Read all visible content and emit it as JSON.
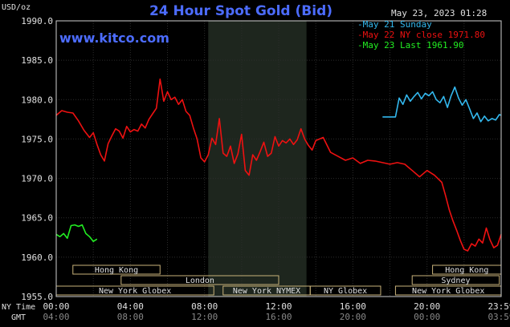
{
  "chart_data": {
    "type": "line",
    "title": "24 Hour Spot Gold (Bid)",
    "watermark": "www.kitco.com",
    "timestamp": "May 23, 2023 01:28",
    "ylabel": "USD/oz",
    "ylim": [
      1955,
      1990
    ],
    "y_ticks": [
      "1990.0",
      "1985.0",
      "1980.0",
      "1975.0",
      "1970.0",
      "1965.0",
      "1960.0",
      "1955.0"
    ],
    "xlim": [
      0,
      24
    ],
    "x_row_labels": {
      "ny": "NY Time",
      "gmt": "GMT"
    },
    "x_ticks_ny": [
      "00:00",
      "04:00",
      "08:00",
      "12:00",
      "16:00",
      "20:00",
      "23:59"
    ],
    "x_ticks_gmt": [
      "04:00",
      "08:00",
      "12:00",
      "16:00",
      "20:00",
      "00:00",
      "03:59"
    ],
    "grid": true,
    "legend": "top-right",
    "shaded_period": [
      8.2,
      13.5
    ],
    "sessions": [
      {
        "label": "Hong Kong",
        "start": 0.9,
        "end": 5.6,
        "row": 0
      },
      {
        "label": "London",
        "start": 3.5,
        "end": 12.0,
        "row": 1
      },
      {
        "label": "New York Globex",
        "start": 0,
        "end": 8.5,
        "row": 2
      },
      {
        "label": "New York NYMEX",
        "start": 9.0,
        "end": 13.7,
        "row": 2
      },
      {
        "label": "NY Globex",
        "start": 13.7,
        "end": 17.5,
        "row": 2
      },
      {
        "label": "Hong Kong",
        "start": 20.3,
        "end": 24,
        "row": 0
      },
      {
        "label": "Sydney",
        "start": 19.2,
        "end": 23.9,
        "row": 1
      },
      {
        "label": "New York Globex",
        "start": 18.3,
        "end": 24,
        "row": 2
      }
    ],
    "series": [
      {
        "name": "May 21 Sunday",
        "color": "#33b8ee",
        "x": [
          17.6,
          18.3,
          18.5,
          18.7,
          18.9,
          19.1,
          19.3,
          19.5,
          19.7,
          19.9,
          20.1,
          20.3,
          20.5,
          20.7,
          20.9,
          21.1,
          21.3,
          21.5,
          21.7,
          21.9,
          22.1,
          22.3,
          22.5,
          22.7,
          22.9,
          23.1,
          23.3,
          23.5,
          23.7,
          23.9,
          24.0
        ],
        "y": [
          1977.8,
          1977.8,
          1980.2,
          1979.4,
          1980.6,
          1979.8,
          1980.4,
          1980.9,
          1980.1,
          1980.8,
          1980.5,
          1981.0,
          1980.0,
          1979.6,
          1980.4,
          1979.0,
          1980.5,
          1981.6,
          1980.2,
          1979.3,
          1980.0,
          1978.8,
          1977.6,
          1978.3,
          1977.2,
          1977.9,
          1977.3,
          1977.6,
          1977.4,
          1978.1,
          1978.0
        ]
      },
      {
        "name": "May 22 NY close 1971.80",
        "color": "#ee1111",
        "x": [
          0,
          0.3,
          0.6,
          0.9,
          1.2,
          1.5,
          1.8,
          2.0,
          2.2,
          2.4,
          2.6,
          2.8,
          3.0,
          3.2,
          3.4,
          3.6,
          3.8,
          4.0,
          4.2,
          4.4,
          4.6,
          4.8,
          5.0,
          5.2,
          5.4,
          5.6,
          5.8,
          6.0,
          6.2,
          6.4,
          6.6,
          6.8,
          7.0,
          7.2,
          7.4,
          7.6,
          7.8,
          8.0,
          8.2,
          8.4,
          8.6,
          8.8,
          9.0,
          9.2,
          9.4,
          9.6,
          9.8,
          10.0,
          10.2,
          10.4,
          10.6,
          10.8,
          11.0,
          11.2,
          11.4,
          11.6,
          11.8,
          12.0,
          12.2,
          12.4,
          12.6,
          12.8,
          13.0,
          13.2,
          13.4,
          13.6,
          13.8,
          14.0,
          14.4,
          14.8,
          15.2,
          15.6,
          16.0,
          16.4,
          16.8,
          17.2,
          17.6,
          18.0,
          18.4,
          18.8,
          19.2,
          19.6,
          20.0,
          20.4,
          20.8,
          21.0,
          21.2,
          21.4,
          21.6,
          21.8,
          22.0,
          22.2,
          22.4,
          22.6,
          22.8,
          23.0,
          23.2,
          23.4,
          23.6,
          23.8,
          24.0
        ],
        "y": [
          1978.0,
          1978.6,
          1978.4,
          1978.3,
          1977.3,
          1976.1,
          1975.2,
          1975.8,
          1974.3,
          1973.0,
          1972.2,
          1974.4,
          1975.4,
          1976.3,
          1976.0,
          1975.1,
          1976.6,
          1975.9,
          1976.2,
          1976.0,
          1976.9,
          1976.4,
          1977.5,
          1978.2,
          1978.9,
          1982.6,
          1979.8,
          1981.0,
          1980.0,
          1980.3,
          1979.4,
          1980.0,
          1978.5,
          1978.0,
          1976.4,
          1975.0,
          1972.6,
          1972.1,
          1973.0,
          1975.1,
          1974.3,
          1977.6,
          1973.2,
          1972.8,
          1974.1,
          1971.9,
          1973.1,
          1975.6,
          1971.0,
          1970.4,
          1973.0,
          1972.3,
          1973.4,
          1974.6,
          1972.8,
          1973.2,
          1975.3,
          1974.1,
          1974.8,
          1974.5,
          1975.0,
          1974.3,
          1974.9,
          1976.3,
          1975.0,
          1974.2,
          1973.6,
          1974.8,
          1975.2,
          1973.3,
          1972.8,
          1972.3,
          1972.6,
          1971.9,
          1972.3,
          1972.2,
          1972.0,
          1971.8,
          1972.0,
          1971.8,
          1971.0,
          1970.2,
          1971.0,
          1970.4,
          1969.5,
          1967.8,
          1966.0,
          1964.6,
          1963.4,
          1962.1,
          1961.0,
          1960.8,
          1961.7,
          1961.4,
          1962.3,
          1961.8,
          1963.7,
          1962.2,
          1961.2,
          1961.5,
          1962.9
        ]
      },
      {
        "name": "May 23 Last 1961.90",
        "color": "#22ee22",
        "x": [
          0,
          0.2,
          0.4,
          0.6,
          0.8,
          1.0,
          1.2,
          1.4,
          1.6,
          1.8,
          2.0,
          2.2
        ],
        "y": [
          1962.9,
          1962.6,
          1963.0,
          1962.4,
          1964.0,
          1964.1,
          1963.9,
          1964.1,
          1963.0,
          1962.6,
          1962.0,
          1962.3
        ]
      }
    ]
  }
}
